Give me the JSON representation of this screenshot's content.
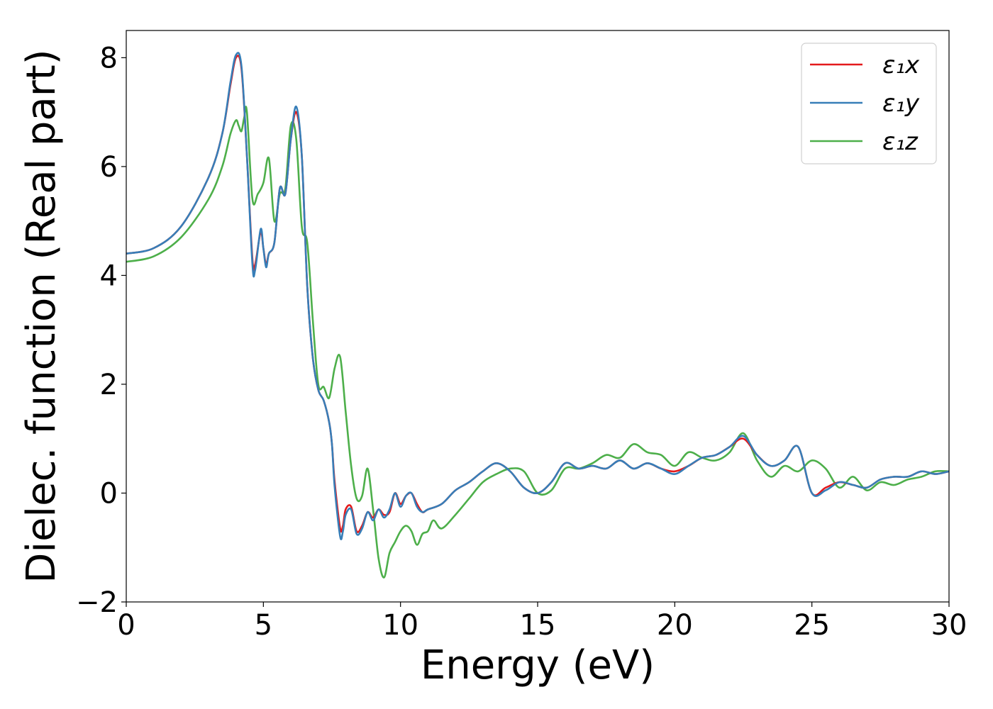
{
  "chart_data": {
    "type": "line",
    "xlabel": "Energy (eV)",
    "ylabel": "Dielec. function (Real part)",
    "xlim": [
      0,
      30
    ],
    "ylim": [
      -2,
      8.5
    ],
    "xticks": [
      0,
      5,
      10,
      15,
      20,
      25,
      30
    ],
    "xtick_labels": [
      "0",
      "5",
      "10",
      "15",
      "20",
      "25",
      "30"
    ],
    "yticks": [
      -2,
      0,
      2,
      4,
      6,
      8
    ],
    "ytick_labels": [
      "−2",
      "0",
      "2",
      "4",
      "6",
      "8"
    ],
    "grid": false,
    "legend_position": "top-right",
    "series": [
      {
        "name": "ε₁x",
        "color": "#e41a1c",
        "x": [
          0,
          1,
          2,
          3,
          3.5,
          3.8,
          4.0,
          4.2,
          4.4,
          4.6,
          4.7,
          4.9,
          5.0,
          5.1,
          5.2,
          5.4,
          5.6,
          5.8,
          6.0,
          6.2,
          6.4,
          6.6,
          6.8,
          7.0,
          7.2,
          7.4,
          7.5,
          7.6,
          7.8,
          7.9,
          8.0,
          8.2,
          8.4,
          8.6,
          8.8,
          9.0,
          9.2,
          9.4,
          9.6,
          9.8,
          10.0,
          10.2,
          10.4,
          10.6,
          10.8,
          11.0,
          11.5,
          12.0,
          12.5,
          13.0,
          13.5,
          14.0,
          14.5,
          15.0,
          15.5,
          16.0,
          16.5,
          17.0,
          17.5,
          18.0,
          18.5,
          19.0,
          19.5,
          20.0,
          20.5,
          21.0,
          21.5,
          22.0,
          22.5,
          23.0,
          23.5,
          24.0,
          24.5,
          25.0,
          25.5,
          26.0,
          26.5,
          27.0,
          27.5,
          28.0,
          28.5,
          29.0,
          29.5,
          30.0
        ],
        "values": [
          4.4,
          4.5,
          4.9,
          5.8,
          6.6,
          7.5,
          8.0,
          7.8,
          6.2,
          4.3,
          4.2,
          4.8,
          4.5,
          4.2,
          4.4,
          4.6,
          5.6,
          5.5,
          6.5,
          7.0,
          6.2,
          3.8,
          2.5,
          1.9,
          1.7,
          1.3,
          0.9,
          0.2,
          -0.65,
          -0.6,
          -0.3,
          -0.25,
          -0.7,
          -0.6,
          -0.35,
          -0.45,
          -0.3,
          -0.4,
          -0.35,
          0.0,
          -0.2,
          -0.05,
          0.0,
          -0.2,
          -0.35,
          -0.3,
          -0.2,
          0.05,
          0.2,
          0.4,
          0.55,
          0.4,
          0.1,
          0.0,
          0.2,
          0.55,
          0.45,
          0.5,
          0.45,
          0.6,
          0.45,
          0.55,
          0.45,
          0.4,
          0.5,
          0.65,
          0.7,
          0.85,
          1.0,
          0.7,
          0.5,
          0.6,
          0.85,
          0.0,
          0.1,
          0.2,
          0.15,
          0.1,
          0.25,
          0.3,
          0.3,
          0.4,
          0.35,
          0.4
        ]
      },
      {
        "name": "ε₁y",
        "color": "#377eb8",
        "x": [
          0,
          1,
          2,
          3,
          3.5,
          3.8,
          4.0,
          4.2,
          4.4,
          4.6,
          4.7,
          4.9,
          5.0,
          5.1,
          5.2,
          5.4,
          5.6,
          5.8,
          6.0,
          6.2,
          6.4,
          6.6,
          6.8,
          7.0,
          7.2,
          7.4,
          7.5,
          7.6,
          7.8,
          7.9,
          8.0,
          8.2,
          8.4,
          8.6,
          8.8,
          9.0,
          9.2,
          9.4,
          9.6,
          9.8,
          10.0,
          10.2,
          10.4,
          10.6,
          10.8,
          11.0,
          11.5,
          12.0,
          12.5,
          13.0,
          13.5,
          14.0,
          14.5,
          15.0,
          15.5,
          16.0,
          16.5,
          17.0,
          17.5,
          18.0,
          18.5,
          19.0,
          19.5,
          20.0,
          20.5,
          21.0,
          21.5,
          22.0,
          22.5,
          23.0,
          23.5,
          24.0,
          24.5,
          25.0,
          25.5,
          26.0,
          26.5,
          27.0,
          27.5,
          28.0,
          28.5,
          29.0,
          29.5,
          30.0
        ],
        "values": [
          4.4,
          4.5,
          4.9,
          5.8,
          6.6,
          7.55,
          8.05,
          7.85,
          6.2,
          4.2,
          4.1,
          4.85,
          4.5,
          4.15,
          4.4,
          4.6,
          5.6,
          5.5,
          6.5,
          7.1,
          6.2,
          3.8,
          2.5,
          1.9,
          1.7,
          1.3,
          0.9,
          0.1,
          -0.8,
          -0.7,
          -0.4,
          -0.3,
          -0.75,
          -0.65,
          -0.35,
          -0.5,
          -0.3,
          -0.45,
          -0.3,
          0.0,
          -0.25,
          -0.05,
          0.0,
          -0.25,
          -0.35,
          -0.3,
          -0.2,
          0.05,
          0.2,
          0.4,
          0.55,
          0.4,
          0.1,
          0.0,
          0.2,
          0.55,
          0.45,
          0.5,
          0.45,
          0.6,
          0.45,
          0.55,
          0.45,
          0.35,
          0.5,
          0.65,
          0.7,
          0.85,
          1.05,
          0.7,
          0.5,
          0.6,
          0.85,
          0.0,
          0.05,
          0.2,
          0.15,
          0.1,
          0.25,
          0.3,
          0.3,
          0.4,
          0.35,
          0.4
        ]
      },
      {
        "name": "ε₁z",
        "color": "#4daf4a",
        "x": [
          0,
          1,
          2,
          3,
          3.5,
          3.8,
          4.0,
          4.1,
          4.2,
          4.3,
          4.4,
          4.6,
          4.8,
          5.0,
          5.2,
          5.4,
          5.6,
          5.8,
          6.0,
          6.2,
          6.4,
          6.6,
          6.8,
          7.0,
          7.2,
          7.4,
          7.6,
          7.8,
          8.0,
          8.2,
          8.4,
          8.6,
          8.8,
          9.0,
          9.2,
          9.4,
          9.6,
          9.8,
          10.0,
          10.2,
          10.4,
          10.6,
          10.8,
          11.0,
          11.2,
          11.5,
          12.0,
          12.5,
          13.0,
          13.5,
          14.0,
          14.5,
          15.0,
          15.5,
          16.0,
          16.5,
          17.0,
          17.5,
          18.0,
          18.5,
          19.0,
          19.5,
          20.0,
          20.5,
          21.0,
          21.5,
          22.0,
          22.5,
          23.0,
          23.5,
          24.0,
          24.5,
          25.0,
          25.5,
          26.0,
          26.5,
          27.0,
          27.5,
          28.0,
          28.5,
          29.0,
          29.5,
          30.0
        ],
        "values": [
          4.25,
          4.35,
          4.7,
          5.4,
          6.0,
          6.6,
          6.85,
          6.75,
          6.65,
          6.9,
          7.0,
          5.4,
          5.5,
          5.7,
          6.15,
          5.0,
          5.5,
          5.6,
          6.75,
          6.5,
          4.9,
          4.6,
          3.2,
          2.0,
          1.95,
          1.75,
          2.3,
          2.5,
          1.5,
          0.5,
          -0.1,
          -0.05,
          0.45,
          -0.3,
          -1.2,
          -1.55,
          -1.1,
          -0.9,
          -0.7,
          -0.6,
          -0.7,
          -0.95,
          -0.75,
          -0.7,
          -0.5,
          -0.65,
          -0.4,
          -0.1,
          0.2,
          0.35,
          0.45,
          0.4,
          0.0,
          0.05,
          0.45,
          0.45,
          0.55,
          0.7,
          0.65,
          0.9,
          0.75,
          0.7,
          0.5,
          0.75,
          0.65,
          0.6,
          0.75,
          1.1,
          0.6,
          0.3,
          0.5,
          0.4,
          0.6,
          0.45,
          0.1,
          0.3,
          0.05,
          0.2,
          0.15,
          0.25,
          0.3,
          0.4,
          0.4
        ]
      }
    ]
  }
}
